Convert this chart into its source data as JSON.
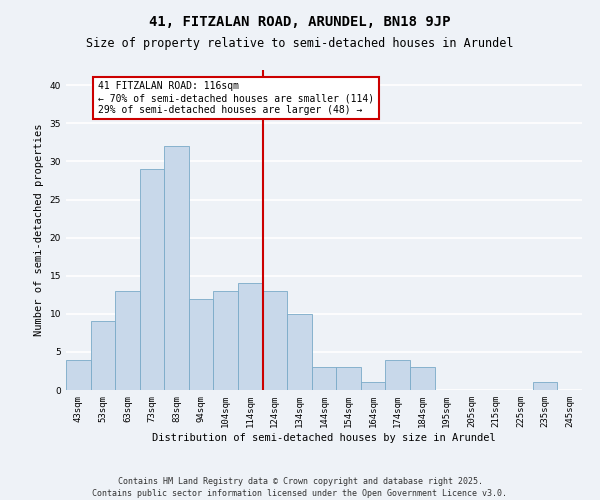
{
  "title": "41, FITZALAN ROAD, ARUNDEL, BN18 9JP",
  "subtitle": "Size of property relative to semi-detached houses in Arundel",
  "xlabel": "Distribution of semi-detached houses by size in Arundel",
  "ylabel": "Number of semi-detached properties",
  "bar_color": "#c8d8ea",
  "bar_edge_color": "#7aaac8",
  "background_color": "#eef2f7",
  "grid_color": "#ffffff",
  "categories": [
    "43sqm",
    "53sqm",
    "63sqm",
    "73sqm",
    "83sqm",
    "94sqm",
    "104sqm",
    "114sqm",
    "124sqm",
    "134sqm",
    "144sqm",
    "154sqm",
    "164sqm",
    "174sqm",
    "184sqm",
    "195sqm",
    "205sqm",
    "215sqm",
    "225sqm",
    "235sqm",
    "245sqm"
  ],
  "values": [
    4,
    9,
    13,
    29,
    32,
    12,
    13,
    14,
    13,
    10,
    3,
    3,
    1,
    4,
    3,
    0,
    0,
    0,
    0,
    1,
    0
  ],
  "vline_x": 7.5,
  "vline_color": "#cc0000",
  "annotation_title": "41 FITZALAN ROAD: 116sqm",
  "annotation_line1": "← 70% of semi-detached houses are smaller (114)",
  "annotation_line2": "29% of semi-detached houses are larger (48) →",
  "ylim": [
    0,
    42
  ],
  "yticks": [
    0,
    5,
    10,
    15,
    20,
    25,
    30,
    35,
    40
  ],
  "footer_line1": "Contains HM Land Registry data © Crown copyright and database right 2025.",
  "footer_line2": "Contains public sector information licensed under the Open Government Licence v3.0.",
  "title_fontsize": 10,
  "subtitle_fontsize": 8.5,
  "axis_label_fontsize": 7.5,
  "tick_fontsize": 6.5,
  "annotation_fontsize": 7,
  "footer_fontsize": 6
}
